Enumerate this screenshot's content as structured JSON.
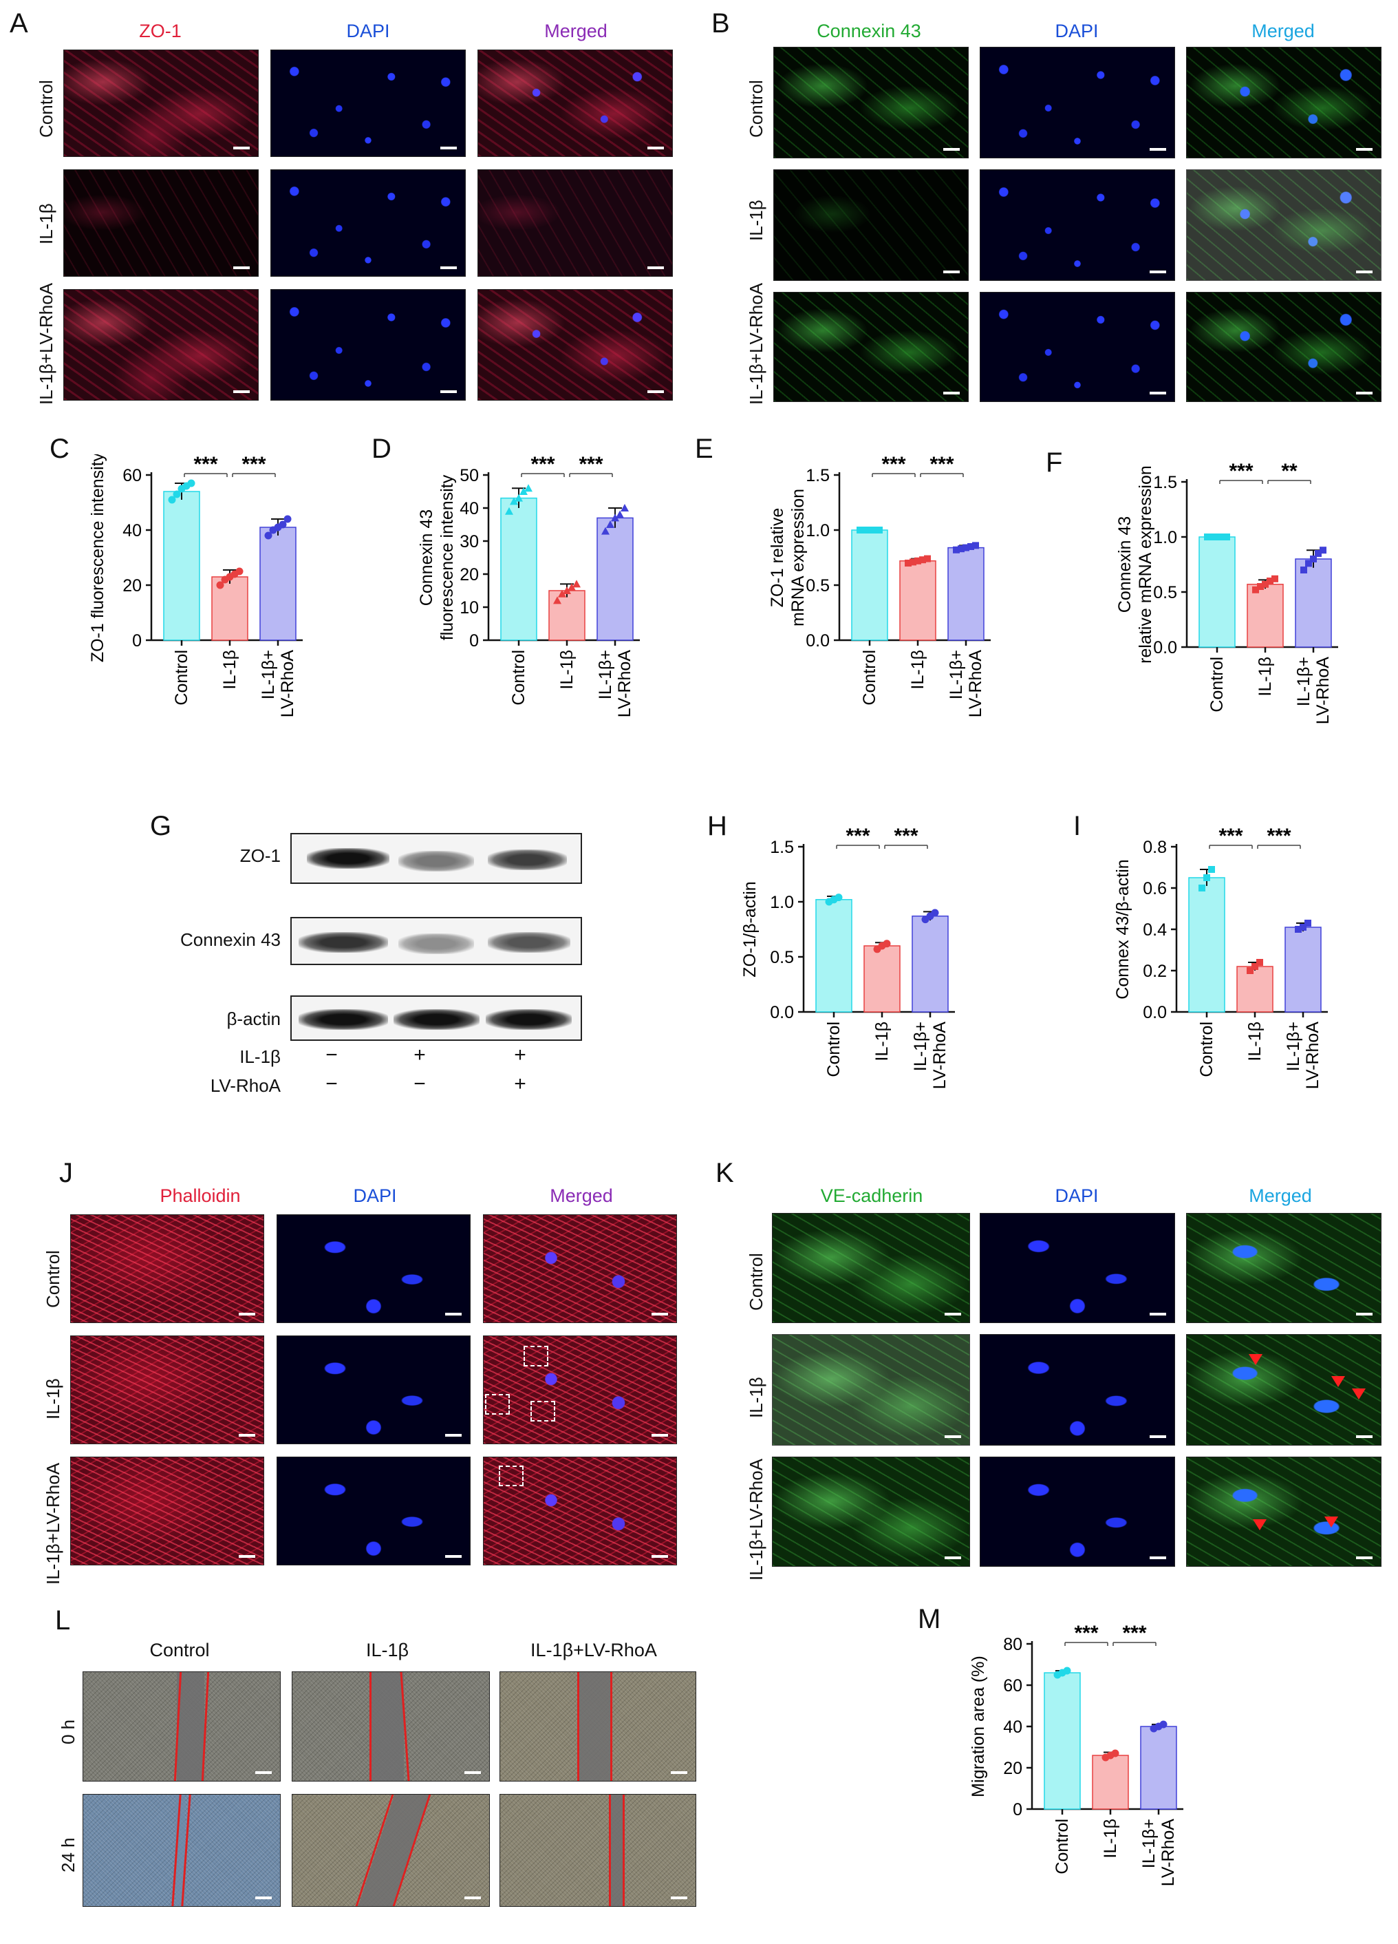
{
  "panels": {
    "A": {
      "letter": "A",
      "headers": [
        "ZO-1",
        "DAPI",
        "Merged"
      ],
      "header_colors": [
        "#e0203a",
        "#1a4fd8",
        "#8a2bb5"
      ],
      "rows": [
        "Control",
        "IL-1β",
        "IL-1β+LV-RhoA"
      ]
    },
    "B": {
      "letter": "B",
      "headers": [
        "Connexin 43",
        "DAPI",
        "Merged"
      ],
      "header_colors": [
        "#22aa33",
        "#1a4fd8",
        "#1aa5e0"
      ],
      "rows": [
        "Control",
        "IL-1β",
        "IL-1β+LV-RhoA"
      ]
    },
    "G": {
      "letter": "G",
      "rows": [
        "ZO-1",
        "Connexin 43",
        "β-actin"
      ],
      "treatments": [
        {
          "name": "IL-1β",
          "signs": [
            "−",
            "+",
            "+"
          ]
        },
        {
          "name": "LV-RhoA",
          "signs": [
            "−",
            "−",
            "+"
          ]
        }
      ]
    },
    "J": {
      "letter": "J",
      "headers": [
        "Phalloidin",
        "DAPI",
        "Merged"
      ],
      "header_colors": [
        "#e0203a",
        "#1a4fd8",
        "#8a2bb5"
      ],
      "rows": [
        "Control",
        "IL-1β",
        "IL-1β+LV-RhoA"
      ]
    },
    "K": {
      "letter": "K",
      "headers": [
        "VE-cadherin",
        "DAPI",
        "Merged"
      ],
      "header_colors": [
        "#22aa33",
        "#1a4fd8",
        "#1aa5e0"
      ],
      "rows": [
        "Control",
        "IL-1β",
        "IL-1β+LV-RhoA"
      ]
    },
    "L": {
      "letter": "L",
      "headers": [
        "Control",
        "IL-1β",
        "IL-1β+LV-RhoA"
      ],
      "rows": [
        "0 h",
        "24 h"
      ]
    }
  },
  "colors": {
    "control": "#a8f4f4",
    "il1b": "#f9b8b8",
    "rhoa": "#b8b8f4",
    "control_pt": "#22d8e8",
    "il1b_pt": "#e84040",
    "rhoa_pt": "#4040d8"
  },
  "chart_data": [
    {
      "panel": "C",
      "type": "bar",
      "categories": [
        "Control",
        "IL-1β",
        "IL-1β+\nLV-RhoA"
      ],
      "values": [
        54,
        23,
        41
      ],
      "errors": [
        3,
        2.5,
        3
      ],
      "points": [
        [
          51,
          53,
          55,
          56,
          57
        ],
        [
          20,
          22,
          23,
          24,
          25
        ],
        [
          38,
          40,
          41,
          42,
          44
        ]
      ],
      "ylabel": "ZO-1 fluorescence intensity",
      "ylim": [
        0,
        60
      ],
      "ticks": [
        0,
        20,
        40,
        60
      ],
      "sig": [
        {
          "from": 0,
          "to": 1,
          "label": "***"
        },
        {
          "from": 1,
          "to": 2,
          "label": "***"
        }
      ],
      "point_shape": "circle"
    },
    {
      "panel": "D",
      "type": "bar",
      "categories": [
        "Control",
        "IL-1β",
        "IL-1β+\nLV-RhoA"
      ],
      "values": [
        43,
        15,
        37
      ],
      "errors": [
        3,
        2,
        3
      ],
      "points": [
        [
          39,
          42,
          43,
          45,
          46
        ],
        [
          12,
          14,
          15,
          16,
          17
        ],
        [
          33,
          35,
          37,
          38,
          40
        ]
      ],
      "ylabel": "Connexin 43\nfluorescence intensity",
      "ylim": [
        0,
        50
      ],
      "ticks": [
        0,
        10,
        20,
        30,
        40,
        50
      ],
      "sig": [
        {
          "from": 0,
          "to": 1,
          "label": "***"
        },
        {
          "from": 1,
          "to": 2,
          "label": "***"
        }
      ],
      "point_shape": "triangle"
    },
    {
      "panel": "E",
      "type": "bar",
      "categories": [
        "Control",
        "IL-1β",
        "IL-1β+\nLV-RhoA"
      ],
      "values": [
        1.0,
        0.72,
        0.84
      ],
      "errors": [
        0,
        0.02,
        0.02
      ],
      "points": [
        [
          1.0,
          1.0,
          1.0,
          1.0,
          1.0
        ],
        [
          0.7,
          0.71,
          0.72,
          0.73,
          0.74
        ],
        [
          0.82,
          0.83,
          0.84,
          0.85,
          0.86
        ]
      ],
      "ylabel": "ZO-1 relative\nmRNA expression",
      "ylim": [
        0,
        1.5
      ],
      "ticks": [
        0.0,
        0.5,
        1.0,
        1.5
      ],
      "sig": [
        {
          "from": 0,
          "to": 1,
          "label": "***"
        },
        {
          "from": 1,
          "to": 2,
          "label": "***"
        }
      ],
      "point_shape": "square"
    },
    {
      "panel": "F",
      "type": "bar",
      "categories": [
        "Control",
        "IL-1β",
        "IL-1β+\nLV-RhoA"
      ],
      "values": [
        1.0,
        0.57,
        0.8
      ],
      "errors": [
        0,
        0.04,
        0.08
      ],
      "points": [
        [
          1.0,
          1.0,
          1.0,
          1.0,
          1.0
        ],
        [
          0.52,
          0.55,
          0.57,
          0.6,
          0.62
        ],
        [
          0.7,
          0.76,
          0.8,
          0.85,
          0.88
        ]
      ],
      "ylabel": "Connexin 43\nrelative mRNA expression",
      "ylim": [
        0,
        1.5
      ],
      "ticks": [
        0.0,
        0.5,
        1.0,
        1.5
      ],
      "sig": [
        {
          "from": 0,
          "to": 1,
          "label": "***"
        },
        {
          "from": 1,
          "to": 2,
          "label": "**"
        }
      ],
      "point_shape": "square"
    },
    {
      "panel": "H",
      "type": "bar",
      "categories": [
        "Control",
        "IL-1β",
        "IL-1β+\nLV-RhoA"
      ],
      "values": [
        1.02,
        0.6,
        0.87
      ],
      "errors": [
        0.03,
        0.03,
        0.04
      ],
      "points": [
        [
          1.0,
          1.02,
          1.04
        ],
        [
          0.57,
          0.6,
          0.62
        ],
        [
          0.84,
          0.87,
          0.9
        ]
      ],
      "ylabel": "ZO-1/β-actin",
      "ylim": [
        0,
        1.5
      ],
      "ticks": [
        0.0,
        0.5,
        1.0,
        1.5
      ],
      "sig": [
        {
          "from": 0,
          "to": 1,
          "label": "***"
        },
        {
          "from": 1,
          "to": 2,
          "label": "***"
        }
      ],
      "point_shape": "circle"
    },
    {
      "panel": "I",
      "type": "bar",
      "categories": [
        "Control",
        "IL-1β",
        "IL-1β+\nLV-RhoA"
      ],
      "values": [
        0.65,
        0.22,
        0.41
      ],
      "errors": [
        0.04,
        0.02,
        0.02
      ],
      "points": [
        [
          0.6,
          0.65,
          0.69
        ],
        [
          0.2,
          0.22,
          0.24
        ],
        [
          0.4,
          0.41,
          0.43
        ]
      ],
      "ylabel": "Connex 43/β-actin",
      "ylim": [
        0,
        0.8
      ],
      "ticks": [
        0.0,
        0.2,
        0.4,
        0.6,
        0.8
      ],
      "sig": [
        {
          "from": 0,
          "to": 1,
          "label": "***"
        },
        {
          "from": 1,
          "to": 2,
          "label": "***"
        }
      ],
      "point_shape": "square"
    },
    {
      "panel": "M",
      "type": "bar",
      "categories": [
        "Control",
        "IL-1β",
        "IL-1β+\nLV-RhoA"
      ],
      "values": [
        66,
        26,
        40
      ],
      "errors": [
        1,
        1.5,
        1
      ],
      "points": [
        [
          65,
          66,
          67
        ],
        [
          25,
          26,
          27
        ],
        [
          39,
          40,
          41
        ]
      ],
      "ylabel": "Migration area (%)",
      "ylim": [
        0,
        80
      ],
      "ticks": [
        0,
        20,
        40,
        60,
        80
      ],
      "sig": [
        {
          "from": 0,
          "to": 1,
          "label": "***"
        },
        {
          "from": 1,
          "to": 2,
          "label": "***"
        }
      ],
      "point_shape": "circle"
    }
  ]
}
